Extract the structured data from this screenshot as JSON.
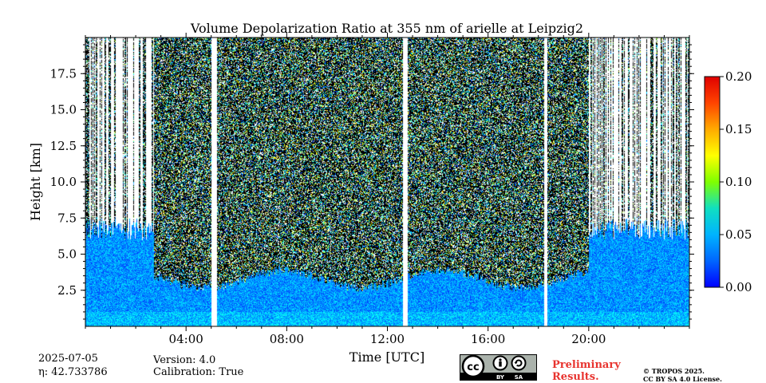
{
  "chart_data": {
    "type": "heatmap",
    "title": "Volume Depolarization Ratio at 355 nm of arielle at Leipzig2",
    "xlabel": "Time [UTC]",
    "ylabel": "Height [km]",
    "x_ticks": [
      "04:00",
      "08:00",
      "12:00",
      "16:00",
      "20:00"
    ],
    "x_tick_hours": [
      4,
      8,
      12,
      16,
      20
    ],
    "xlim_hours": [
      0,
      24
    ],
    "y_ticks": [
      "2.5",
      "5.0",
      "7.5",
      "10.0",
      "12.5",
      "15.0",
      "17.5"
    ],
    "y_tick_values": [
      2.5,
      5.0,
      7.5,
      10.0,
      12.5,
      15.0,
      17.5
    ],
    "ylim_km": [
      0,
      20
    ],
    "colorbar": {
      "ticks": [
        "0.00",
        "0.05",
        "0.10",
        "0.15",
        "0.20"
      ],
      "tick_values": [
        0.0,
        0.05,
        0.1,
        0.15,
        0.2
      ],
      "range": [
        0.0,
        0.2
      ],
      "colormap": "jet"
    },
    "data_gaps_hours": [
      [
        5.0,
        5.2
      ],
      [
        12.6,
        12.8
      ],
      [
        18.2,
        18.35
      ]
    ],
    "grid": false
  },
  "footer": {
    "date": "2025-07-05",
    "eta": "η: 42.733786",
    "version": "Version: 4.0",
    "calibration": "Calibration: True",
    "preliminary_line1": "Preliminary",
    "preliminary_line2": "Results.",
    "copyright_line1": "© TROPOS 2025.",
    "copyright_line2": "CC BY SA 4.0 License.",
    "license_badge": {
      "by": "BY",
      "sa": "SA",
      "icon": "creative-commons-icon"
    }
  }
}
